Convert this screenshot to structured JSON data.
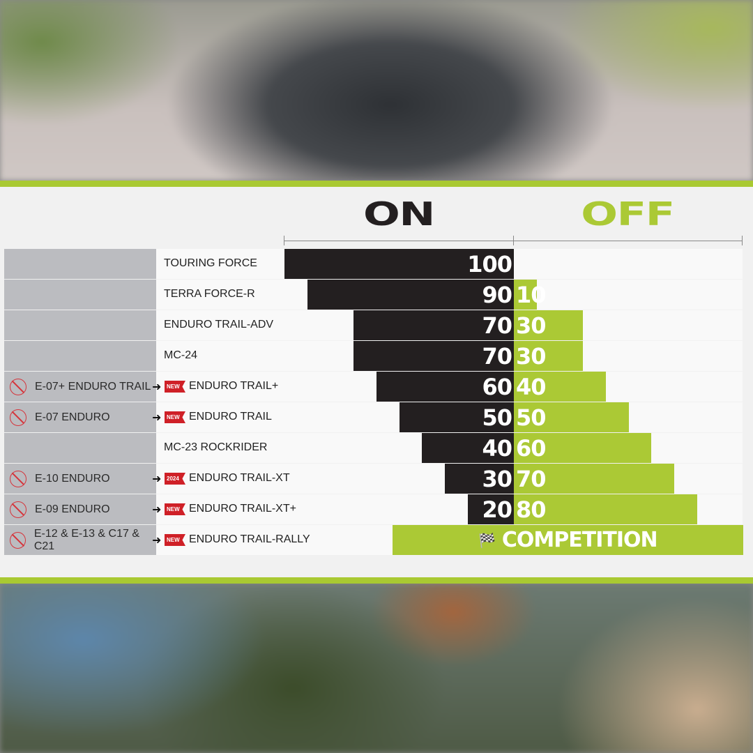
{
  "chart_data": {
    "type": "bar",
    "headers": {
      "on": "ON",
      "off": "OFF"
    },
    "xlim": [
      0,
      100
    ],
    "colors": {
      "on": "#231f20",
      "off": "#abc935",
      "badge": "#cf2027",
      "legacy_bg": "#bbbcc0"
    },
    "rows": [
      {
        "old": "",
        "badge": "",
        "name": "TOURING FORCE",
        "on": 100,
        "off": 0
      },
      {
        "old": "",
        "badge": "",
        "name": "TERRA FORCE-R",
        "on": 90,
        "off": 10
      },
      {
        "old": "",
        "badge": "",
        "name": "ENDURO TRAIL-ADV",
        "on": 70,
        "off": 30
      },
      {
        "old": "",
        "badge": "",
        "name": "MC-24",
        "on": 70,
        "off": 30
      },
      {
        "old": "E-07+ ENDURO TRAIL",
        "badge": "NEW",
        "name": "ENDURO TRAIL+",
        "on": 60,
        "off": 40
      },
      {
        "old": "E-07 ENDURO",
        "badge": "NEW",
        "name": "ENDURO TRAIL",
        "on": 50,
        "off": 50
      },
      {
        "old": "",
        "badge": "",
        "name": "MC-23 ROCKRIDER",
        "on": 40,
        "off": 60
      },
      {
        "old": "E-10 ENDURO",
        "badge": "2024",
        "name": "ENDURO TRAIL-XT",
        "on": 30,
        "off": 70
      },
      {
        "old": "E-09 ENDURO",
        "badge": "NEW",
        "name": "ENDURO TRAIL-XT+",
        "on": 20,
        "off": 80
      },
      {
        "old": "E-12 & E-13 & C17 & C21",
        "badge": "NEW",
        "name": "ENDURO TRAIL-RALLY",
        "competition": "COMPETITION",
        "on_extent": 53,
        "off": 100
      }
    ]
  }
}
